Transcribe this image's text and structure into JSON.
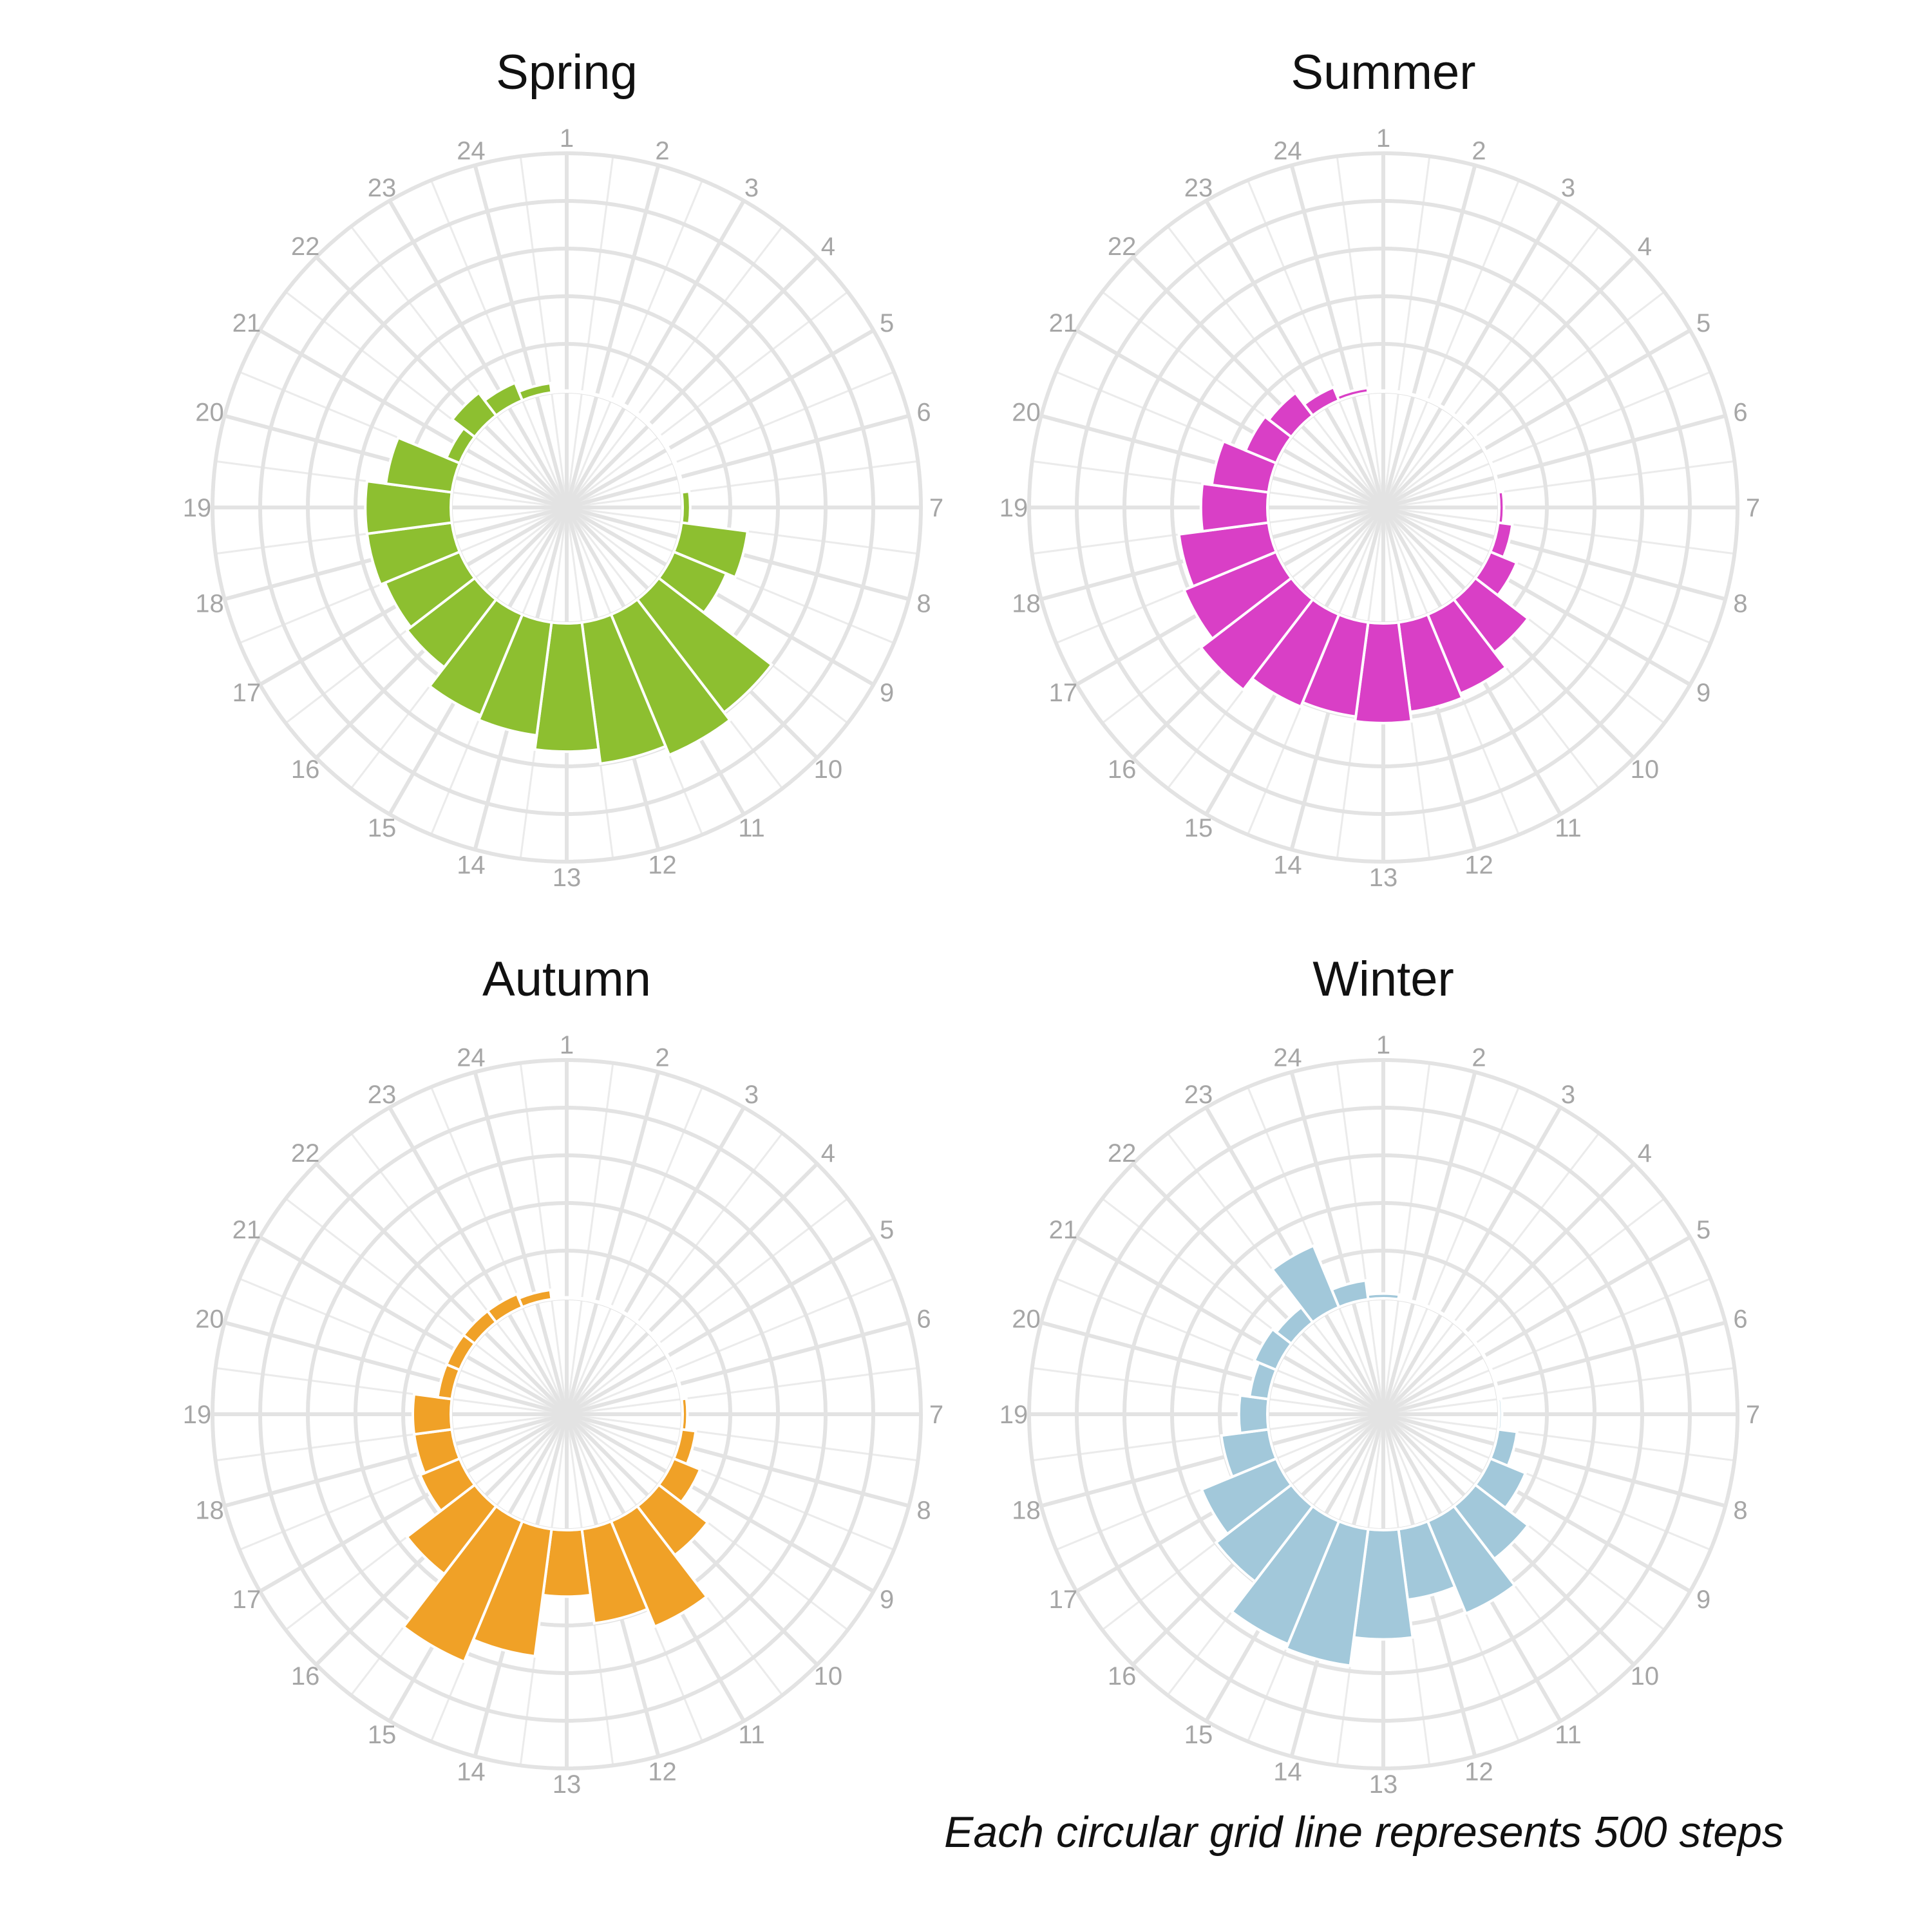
{
  "footnote": "Each circular grid line represents 500 steps",
  "chart_data": [
    {
      "type": "bar",
      "polar": true,
      "title": "Spring",
      "categories": [
        "1",
        "2",
        "3",
        "4",
        "5",
        "6",
        "7",
        "8",
        "9",
        "10",
        "11",
        "12",
        "13",
        "14",
        "15",
        "16",
        "17",
        "18",
        "19",
        "20",
        "21",
        "22",
        "23",
        "24"
      ],
      "values": [
        10,
        10,
        20,
        20,
        20,
        20,
        80,
        700,
        600,
        1500,
        1600,
        1500,
        1350,
        1200,
        1150,
        900,
        850,
        900,
        900,
        700,
        150,
        300,
        200,
        100
      ],
      "color": "#8dbf30",
      "grid_step": 500,
      "ylim": [
        0,
        2500
      ]
    },
    {
      "type": "bar",
      "polar": true,
      "title": "Summer",
      "categories": [
        "1",
        "2",
        "3",
        "4",
        "5",
        "6",
        "7",
        "8",
        "9",
        "10",
        "11",
        "12",
        "13",
        "14",
        "15",
        "16",
        "17",
        "18",
        "19",
        "20",
        "21",
        "22",
        "23",
        "24"
      ],
      "values": [
        10,
        10,
        10,
        10,
        10,
        10,
        50,
        150,
        300,
        700,
        900,
        950,
        1050,
        1000,
        1050,
        1200,
        1050,
        950,
        700,
        600,
        350,
        300,
        150,
        50
      ],
      "color": "#d93fc6",
      "grid_step": 500,
      "ylim": [
        0,
        2500
      ]
    },
    {
      "type": "bar",
      "polar": true,
      "title": "Autumn",
      "categories": [
        "1",
        "2",
        "3",
        "4",
        "5",
        "6",
        "7",
        "8",
        "9",
        "10",
        "11",
        "12",
        "13",
        "14",
        "15",
        "16",
        "17",
        "18",
        "19",
        "20",
        "21",
        "22",
        "23",
        "24"
      ],
      "values": [
        10,
        10,
        10,
        10,
        10,
        10,
        50,
        150,
        300,
        650,
        1200,
        1000,
        700,
        1350,
        1600,
        900,
        450,
        400,
        400,
        150,
        150,
        150,
        150,
        100
      ],
      "color": "#f0a127",
      "grid_step": 500,
      "ylim": [
        0,
        2500
      ]
    },
    {
      "type": "bar",
      "polar": true,
      "title": "Winter",
      "categories": [
        "1",
        "2",
        "3",
        "4",
        "5",
        "6",
        "7",
        "8",
        "9",
        "10",
        "11",
        "12",
        "13",
        "14",
        "15",
        "16",
        "17",
        "18",
        "19",
        "20",
        "21",
        "22",
        "23",
        "24"
      ],
      "values": [
        50,
        10,
        10,
        10,
        10,
        10,
        30,
        200,
        400,
        700,
        1050,
        750,
        1150,
        1450,
        1400,
        1000,
        850,
        500,
        300,
        200,
        250,
        200,
        700,
        200
      ],
      "color": "#a2c8da",
      "grid_step": 500,
      "ylim": [
        0,
        2500
      ]
    }
  ]
}
